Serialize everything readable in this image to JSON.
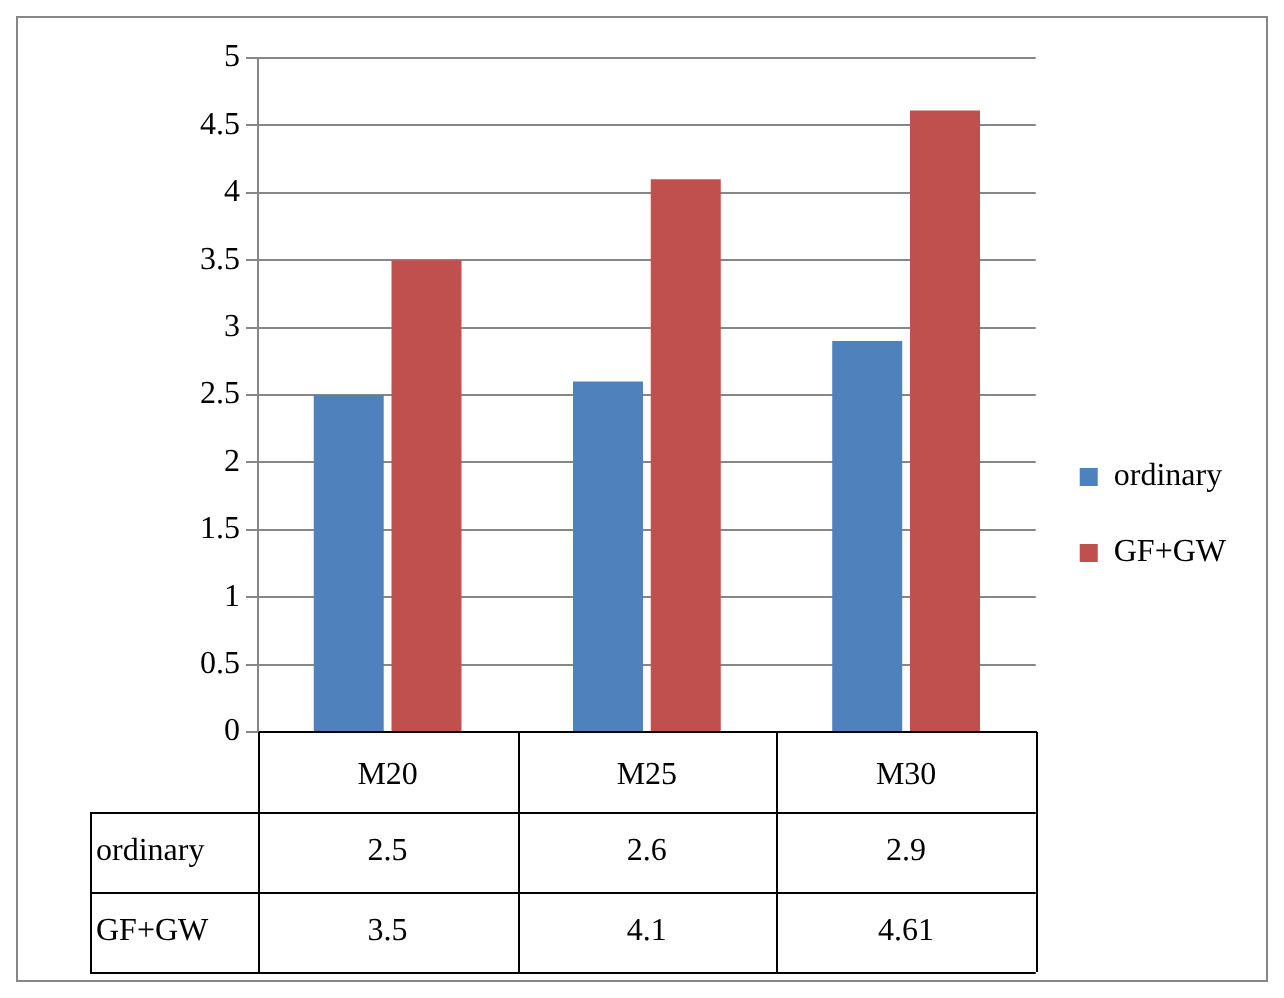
{
  "chart_data": {
    "type": "bar",
    "categories": [
      "M20",
      "M25",
      "M30"
    ],
    "series": [
      {
        "name": "ordinary",
        "color": "#4f81bd",
        "values": [
          2.5,
          2.6,
          2.9
        ]
      },
      {
        "name": "GF+GW",
        "color": "#c0504d",
        "values": [
          3.5,
          4.1,
          4.61
        ]
      }
    ],
    "ylim": [
      0,
      5
    ],
    "yticks": [
      0,
      0.5,
      1,
      1.5,
      2,
      2.5,
      3,
      3.5,
      4,
      4.5,
      5
    ],
    "grid": "y",
    "legend": "right",
    "data_labels": true
  }
}
